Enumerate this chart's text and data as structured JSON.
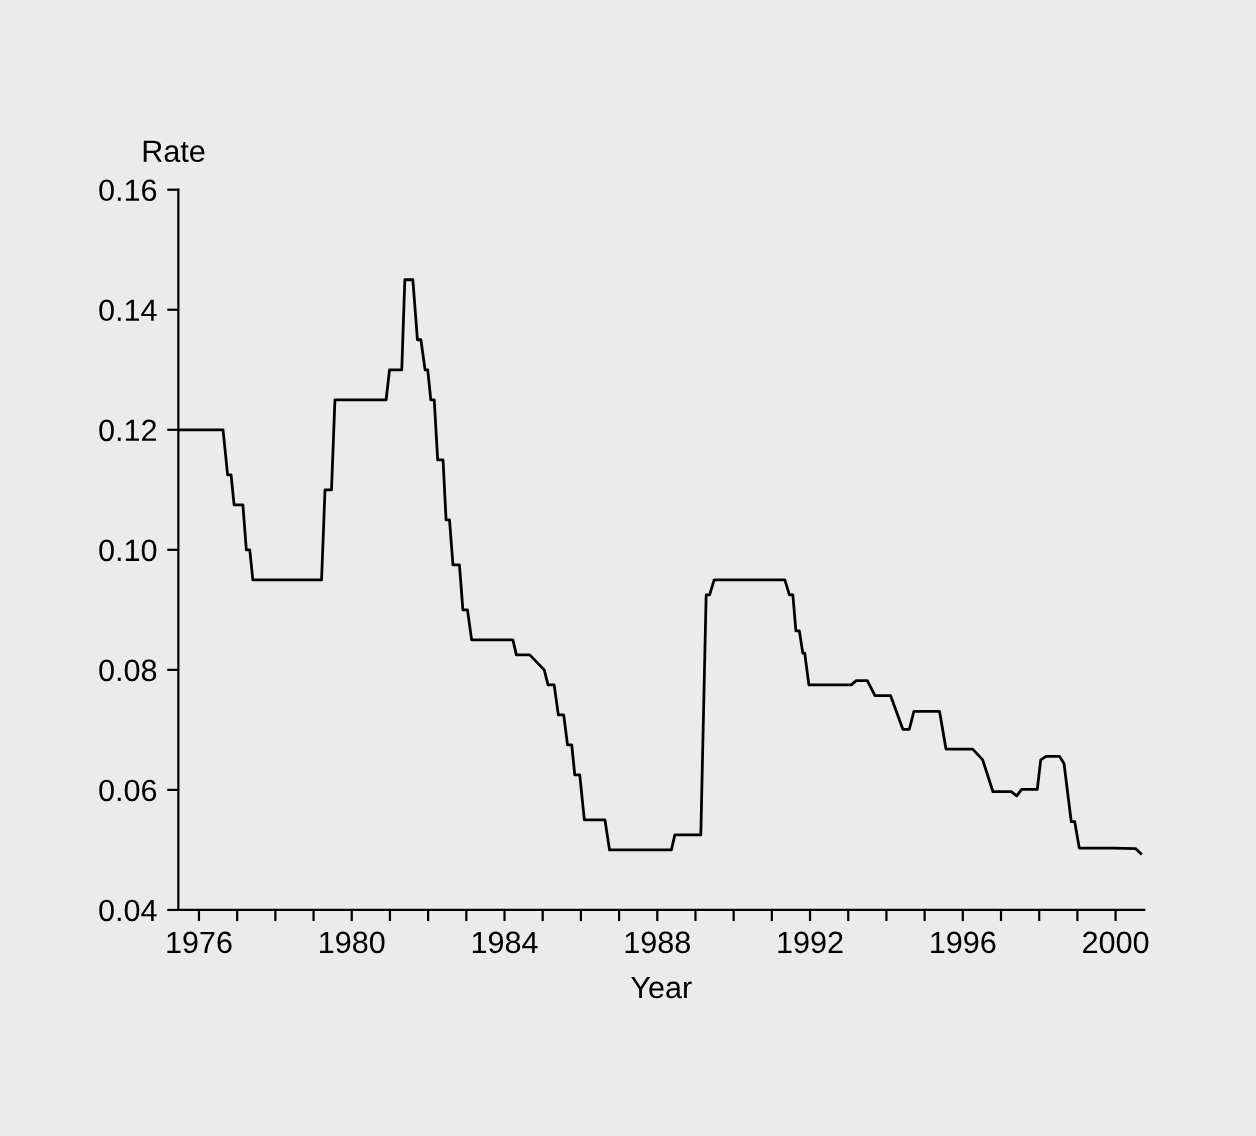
{
  "chart_data": {
    "type": "line",
    "ylabel": "Rate",
    "xlabel": "Year",
    "color": "#000000",
    "x": [
      1975.46,
      1976.63,
      1976.75,
      1976.84,
      1976.92,
      1977.15,
      1977.24,
      1977.33,
      1977.41,
      1979.21,
      1979.3,
      1979.47,
      1979.56,
      1980.9,
      1980.99,
      1981.31,
      1981.39,
      1981.6,
      1981.72,
      1981.81,
      1981.92,
      1981.99,
      1982.07,
      1982.16,
      1982.25,
      1982.39,
      1982.47,
      1982.56,
      1982.65,
      1982.82,
      1982.91,
      1983.03,
      1983.14,
      1984.22,
      1984.31,
      1984.66,
      1985.04,
      1985.14,
      1985.3,
      1985.41,
      1985.55,
      1985.65,
      1985.76,
      1985.84,
      1985.97,
      1986.09,
      1986.63,
      1986.75,
      1988.37,
      1988.46,
      1989.14,
      1989.28,
      1989.37,
      1989.49,
      1991.34,
      1991.46,
      1991.55,
      1991.63,
      1991.72,
      1991.81,
      1991.86,
      1991.97,
      1993.08,
      1993.21,
      1993.5,
      1993.7,
      1994.11,
      1994.43,
      1994.6,
      1994.72,
      1995.39,
      1995.56,
      1996.26,
      1996.52,
      1996.79,
      1997.27,
      1997.41,
      1997.54,
      1997.95,
      1998.04,
      1998.18,
      1998.53,
      1998.65,
      1998.84,
      1998.93,
      1999.05,
      1999.93,
      2000.53,
      2000.66
    ],
    "values": [
      0.12,
      0.12,
      0.1125,
      0.1125,
      0.1075,
      0.1075,
      0.1,
      0.1,
      0.095,
      0.095,
      0.11,
      0.11,
      0.125,
      0.125,
      0.13,
      0.13,
      0.145,
      0.145,
      0.135,
      0.135,
      0.13,
      0.13,
      0.125,
      0.125,
      0.115,
      0.115,
      0.105,
      0.105,
      0.0975,
      0.0975,
      0.09,
      0.09,
      0.085,
      0.085,
      0.0825,
      0.0825,
      0.08,
      0.0775,
      0.0775,
      0.0725,
      0.0725,
      0.0675,
      0.0675,
      0.0625,
      0.0625,
      0.055,
      0.055,
      0.05,
      0.05,
      0.0525,
      0.0525,
      0.0925,
      0.0925,
      0.095,
      0.095,
      0.0925,
      0.0925,
      0.0865,
      0.0865,
      0.0828,
      0.0828,
      0.0775,
      0.0775,
      0.0782,
      0.0782,
      0.0757,
      0.0757,
      0.0701,
      0.0701,
      0.0731,
      0.0731,
      0.0668,
      0.0668,
      0.065,
      0.0597,
      0.0597,
      0.059,
      0.0601,
      0.0601,
      0.065,
      0.0656,
      0.0656,
      0.0644,
      0.0547,
      0.0547,
      0.0503,
      0.0503,
      0.0502,
      0.0494
    ],
    "xlim": [
      1975.46,
      2000.75
    ],
    "xticks": [
      1976,
      {
        "value": 1977,
        "label": null
      },
      {
        "value": 1978,
        "label": null
      },
      {
        "value": 1979,
        "label": null
      },
      1980,
      {
        "value": 1981,
        "label": null
      },
      {
        "value": 1982,
        "label": null
      },
      {
        "value": 1983,
        "label": null
      },
      1984,
      {
        "value": 1985,
        "label": null
      },
      {
        "value": 1986,
        "label": null
      },
      {
        "value": 1987,
        "label": null
      },
      1988,
      {
        "value": 1989,
        "label": null
      },
      {
        "value": 1990,
        "label": null
      },
      {
        "value": 1991,
        "label": null
      },
      1992,
      {
        "value": 1993,
        "label": null
      },
      {
        "value": 1994,
        "label": null
      },
      {
        "value": 1995,
        "label": null
      },
      1996,
      {
        "value": 1997,
        "label": null
      },
      {
        "value": 1998,
        "label": null
      },
      {
        "value": 1999,
        "label": null
      },
      2000
    ],
    "ylim": [
      0.04,
      0.16
    ],
    "yticks": [
      {
        "value": 0.04,
        "label": "0.04"
      },
      {
        "value": 0.06,
        "label": "0.06"
      },
      {
        "value": 0.08,
        "label": "0.08"
      },
      {
        "value": 0.1,
        "label": "0.10"
      },
      {
        "value": 0.12,
        "label": "0.12"
      },
      {
        "value": 0.14,
        "label": "0.14"
      },
      {
        "value": 0.16,
        "label": "0.16"
      }
    ],
    "grid": false,
    "legend": false,
    "marker": "none",
    "line_style": "solid"
  }
}
